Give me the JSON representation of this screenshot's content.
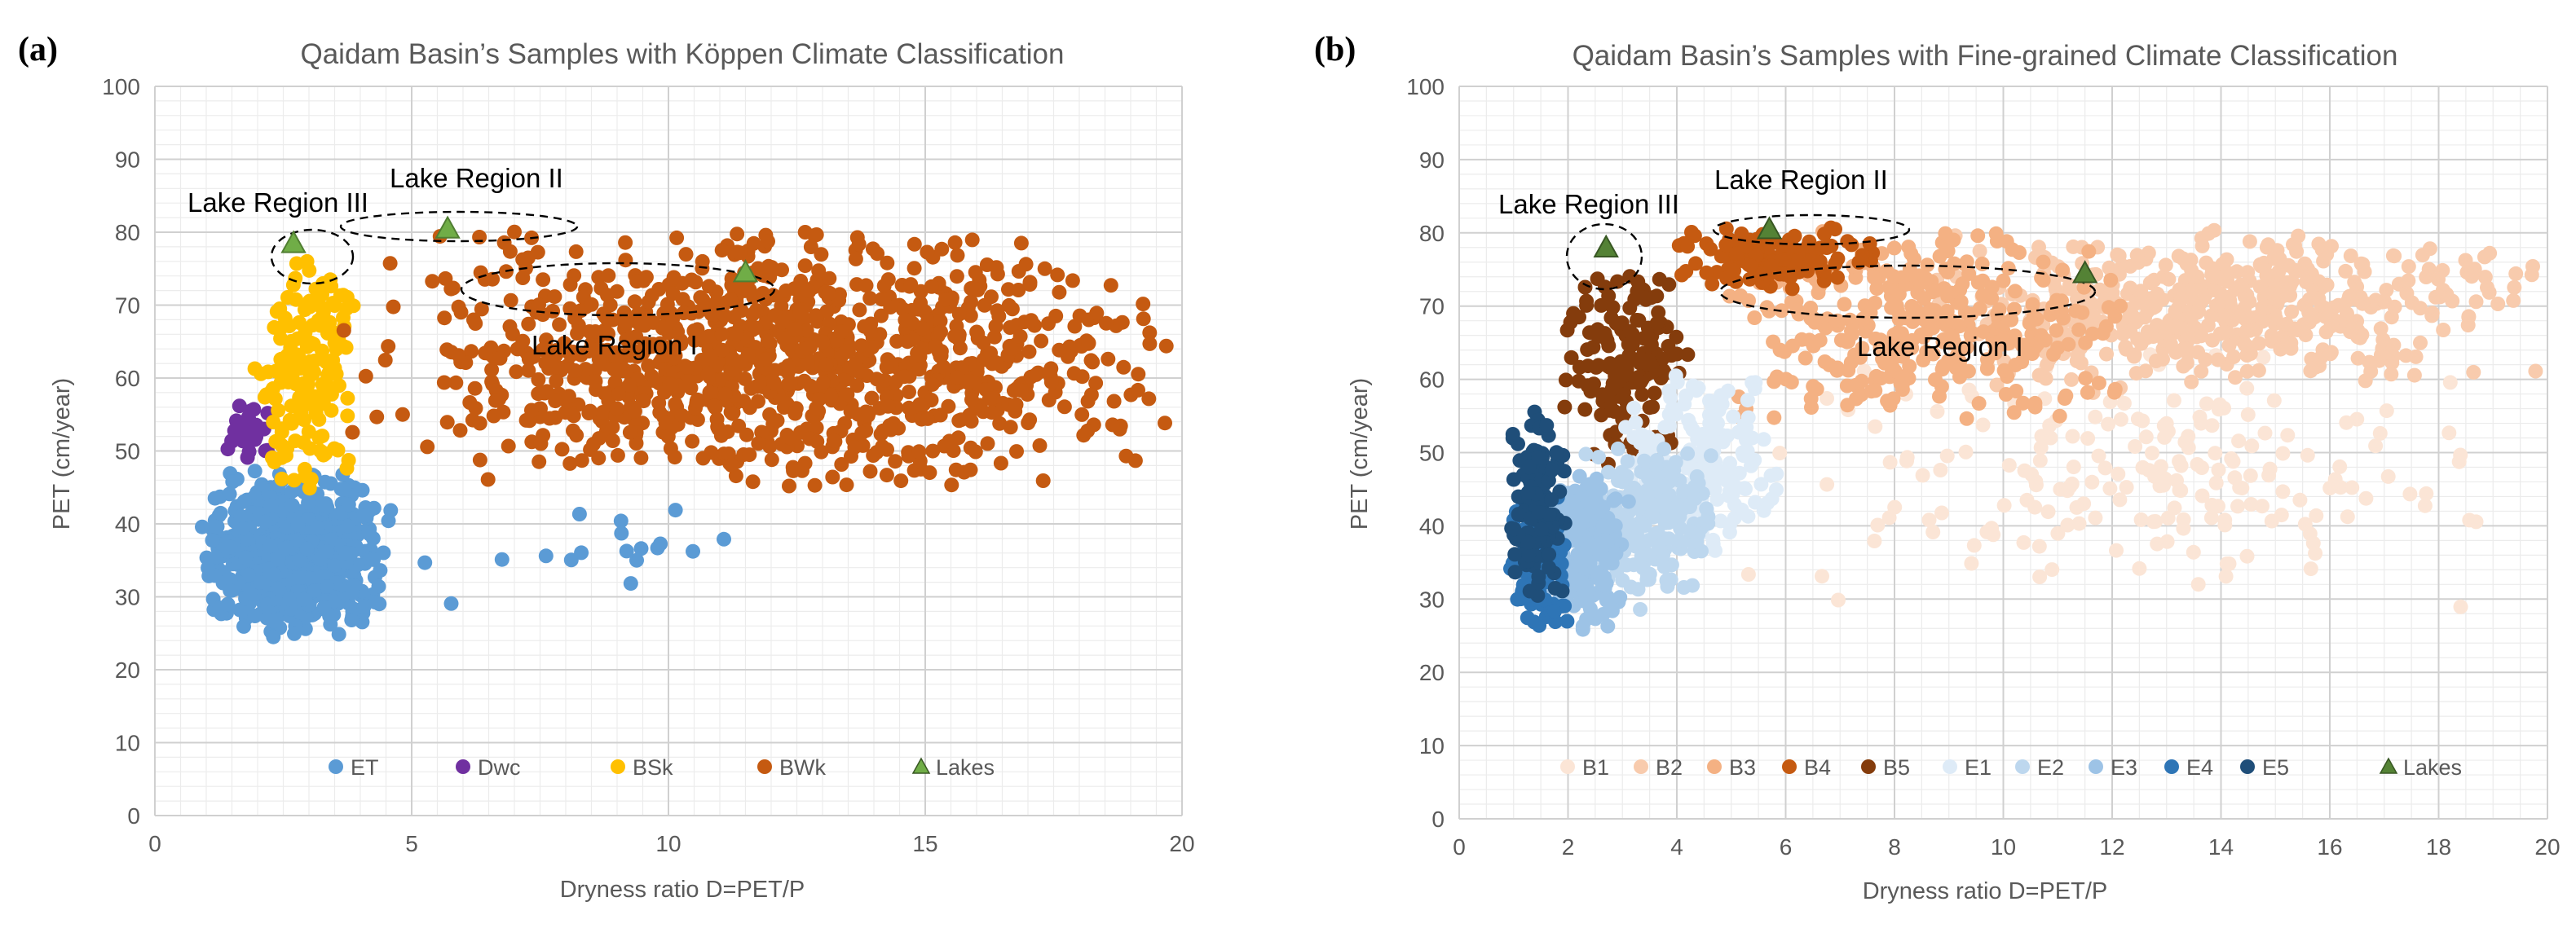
{
  "chart_data": [
    {
      "panel": "(a)",
      "type": "scatter",
      "title": "Qaidam Basin’s Samples with Köppen Climate Classification",
      "xlabel": "Dryness ratio D=PET/P",
      "ylabel": "PET (cm/year)",
      "xlim": [
        0,
        20
      ],
      "ylim": [
        0,
        100
      ],
      "xticks": [
        0,
        5,
        10,
        15,
        20
      ],
      "yticks": [
        0,
        10,
        20,
        30,
        40,
        50,
        60,
        70,
        80,
        90,
        100
      ],
      "minor_x_step": 0.5,
      "minor_y_step": 2,
      "legend_position": "bottom-inside",
      "series": [
        {
          "name": "ET",
          "color": "#5B9BD5",
          "marker": "circle",
          "clusters": [
            {
              "x_range": [
                0.9,
                4.6
              ],
              "y_range": [
                24,
                48
              ],
              "count": 700
            },
            {
              "x_range": [
                4.5,
                12.2
              ],
              "y_range": [
                28,
                45
              ],
              "count": 18
            }
          ]
        },
        {
          "name": "Dwc",
          "color": "#7030A0",
          "marker": "circle",
          "clusters": [
            {
              "x_range": [
                1.3,
                2.3
              ],
              "y_range": [
                47,
                57
              ],
              "count": 30
            }
          ]
        },
        {
          "name": "BSk",
          "color": "#FFC000",
          "marker": "circle",
          "clusters": [
            {
              "x_range": [
                1.9,
                4.0
              ],
              "y_range": [
                44,
                78
              ],
              "count": 160
            }
          ]
        },
        {
          "name": "BWk",
          "color": "#C55A11",
          "marker": "circle",
          "clusters": [
            {
              "x_range": [
                3.6,
                20
              ],
              "y_range": [
                44,
                81
              ],
              "count": 1100
            }
          ]
        },
        {
          "name": "Lakes",
          "color": "#70AD47",
          "marker": "triangle",
          "points": [
            {
              "x": 2.7,
              "y": 78.5
            },
            {
              "x": 5.7,
              "y": 80.5
            },
            {
              "x": 11.5,
              "y": 74.5
            }
          ]
        }
      ],
      "annotations": [
        {
          "text": "Lake Region III",
          "x": 2.5,
          "y": 78
        },
        {
          "text": "Lake Region II",
          "x": 6.4,
          "y": 80.5
        },
        {
          "text": "Lake Region I",
          "x": 9.5,
          "y": 72.5
        }
      ]
    },
    {
      "panel": "(b)",
      "type": "scatter",
      "title": "Qaidam Basin’s Samples with Fine-grained Climate Classification",
      "xlabel": "Dryness ratio D=PET/P",
      "ylabel": "PET (cm/year)",
      "xlim": [
        0,
        20
      ],
      "ylim": [
        0,
        100
      ],
      "xticks": [
        0,
        2,
        4,
        6,
        8,
        10,
        12,
        14,
        16,
        18,
        20
      ],
      "yticks": [
        0,
        10,
        20,
        30,
        40,
        50,
        60,
        70,
        80,
        90,
        100
      ],
      "minor_x_step": 0.5,
      "minor_y_step": 2,
      "legend_position": "bottom-inside",
      "series": [
        {
          "name": "B1",
          "color": "#FBE5D6",
          "marker": "circle",
          "clusters": [
            {
              "x_range": [
                5.0,
                19.5
              ],
              "y_range": [
                28,
                66
              ],
              "count": 200
            }
          ]
        },
        {
          "name": "B2",
          "color": "#F8CBAD",
          "marker": "circle",
          "clusters": [
            {
              "x_range": [
                8.5,
                20
              ],
              "y_range": [
                58,
                81
              ],
              "count": 500
            }
          ]
        },
        {
          "name": "B3",
          "color": "#F4B183",
          "marker": "circle",
          "clusters": [
            {
              "x_range": [
                4.7,
                12.5
              ],
              "y_range": [
                53,
                81
              ],
              "count": 350
            }
          ]
        },
        {
          "name": "B4",
          "color": "#C55A11",
          "marker": "circle",
          "clusters": [
            {
              "x_range": [
                3.7,
                8.0
              ],
              "y_range": [
                72,
                81
              ],
              "count": 120
            }
          ]
        },
        {
          "name": "B5",
          "color": "#843C0C",
          "marker": "circle",
          "clusters": [
            {
              "x_range": [
                1.8,
                4.3
              ],
              "y_range": [
                46,
                78
              ],
              "count": 150
            }
          ]
        },
        {
          "name": "E1",
          "color": "#DEEBF7",
          "marker": "circle",
          "clusters": [
            {
              "x_range": [
                3.0,
                6.0
              ],
              "y_range": [
                35,
                62
              ],
              "count": 180
            }
          ]
        },
        {
          "name": "E2",
          "color": "#BDD7EE",
          "marker": "circle",
          "clusters": [
            {
              "x_range": [
                2.0,
                4.8
              ],
              "y_range": [
                28,
                52
              ],
              "count": 200
            }
          ]
        },
        {
          "name": "E3",
          "color": "#9DC3E6",
          "marker": "circle",
          "clusters": [
            {
              "x_range": [
                1.5,
                3.2
              ],
              "y_range": [
                25,
                48
              ],
              "count": 180
            }
          ]
        },
        {
          "name": "E4",
          "color": "#2E75B6",
          "marker": "circle",
          "clusters": [
            {
              "x_range": [
                0.9,
                2.0
              ],
              "y_range": [
                26,
                45
              ],
              "count": 140
            }
          ]
        },
        {
          "name": "E5",
          "color": "#1F4E79",
          "marker": "circle",
          "clusters": [
            {
              "x_range": [
                0.8,
                2.0
              ],
              "y_range": [
                30,
                57
              ],
              "count": 140
            }
          ]
        },
        {
          "name": "Lakes",
          "color": "#548235",
          "marker": "triangle",
          "points": [
            {
              "x": 2.7,
              "y": 78
            },
            {
              "x": 5.7,
              "y": 80.5
            },
            {
              "x": 11.5,
              "y": 74.5
            }
          ]
        }
      ],
      "annotations": [
        {
          "text": "Lake Region III",
          "x": 2.7,
          "y": 78
        },
        {
          "text": "Lake Region II",
          "x": 6.1,
          "y": 80.5
        },
        {
          "text": "Lake Region I",
          "x": 9.8,
          "y": 72.5
        }
      ]
    }
  ]
}
